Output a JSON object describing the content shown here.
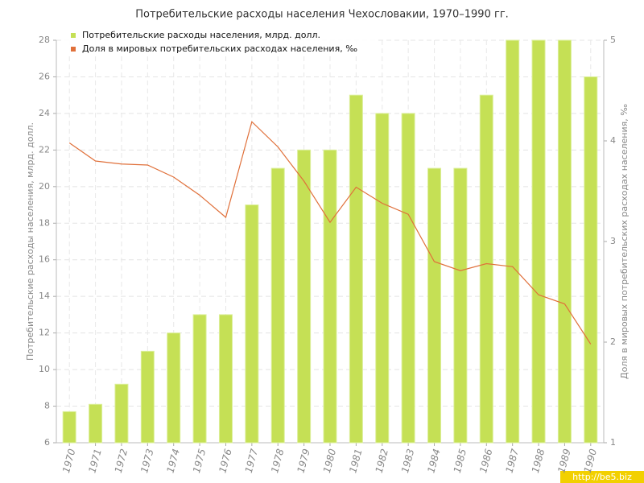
{
  "chart_data": {
    "type": "bar",
    "title": "Потребительские расходы населения Чехословакии, 1970–1990 гг.",
    "y_label": "Потребительские расходы населения, млрд. долл.",
    "y2_label": "Доля в мировых потребительских расходах населения, ‰",
    "watermark": "http://be5.biz",
    "categories": [
      "1970",
      "1971",
      "1972",
      "1973",
      "1974",
      "1975",
      "1976",
      "1977",
      "1978",
      "1979",
      "1980",
      "1981",
      "1982",
      "1983",
      "1984",
      "1985",
      "1986",
      "1987",
      "1988",
      "1989",
      "1990"
    ],
    "series": [
      {
        "name": "Потребительские расходы населения, млрд. долл.",
        "type": "bar",
        "color": "#c5e055",
        "values": [
          7.7,
          8.1,
          9.2,
          11,
          12,
          13,
          13,
          19,
          21,
          22,
          22,
          25,
          24,
          24,
          21,
          21,
          25,
          28,
          28,
          28,
          26
        ]
      },
      {
        "name": "Доля в мировых потребительских расходах населения, ‰",
        "type": "line",
        "axis": "y2",
        "color": "#e0703a",
        "values": [
          3.98,
          3.8,
          3.77,
          3.76,
          3.64,
          3.46,
          3.24,
          4.19,
          3.94,
          3.6,
          3.19,
          3.54,
          3.38,
          3.27,
          2.8,
          2.71,
          2.78,
          2.75,
          2.47,
          2.38,
          1.98
        ]
      }
    ],
    "ylim": [
      6,
      28
    ],
    "yticks": [
      6,
      8,
      10,
      12,
      14,
      16,
      18,
      20,
      22,
      24,
      26,
      28
    ],
    "y2lim": [
      1,
      5
    ],
    "y2ticks": [
      1,
      2,
      3,
      4,
      5
    ],
    "grid": true,
    "legend": "top-left"
  }
}
